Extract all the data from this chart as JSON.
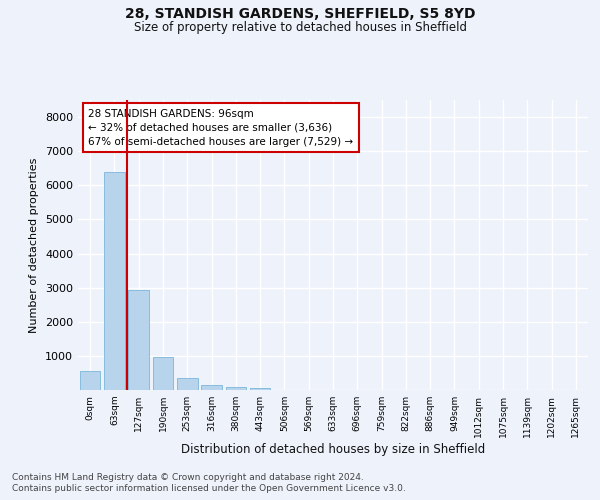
{
  "title_line1": "28, STANDISH GARDENS, SHEFFIELD, S5 8YD",
  "title_line2": "Size of property relative to detached houses in Sheffield",
  "xlabel": "Distribution of detached houses by size in Sheffield",
  "ylabel": "Number of detached properties",
  "categories": [
    "0sqm",
    "63sqm",
    "127sqm",
    "190sqm",
    "253sqm",
    "316sqm",
    "380sqm",
    "443sqm",
    "506sqm",
    "569sqm",
    "633sqm",
    "696sqm",
    "759sqm",
    "822sqm",
    "886sqm",
    "949sqm",
    "1012sqm",
    "1075sqm",
    "1139sqm",
    "1202sqm",
    "1265sqm"
  ],
  "bar_values": [
    560,
    6400,
    2920,
    970,
    360,
    160,
    90,
    60,
    0,
    0,
    0,
    0,
    0,
    0,
    0,
    0,
    0,
    0,
    0,
    0,
    0
  ],
  "bar_color": "#b8d4ec",
  "bar_edge_color": "#6aaed6",
  "vline_x": 1.5,
  "vline_color": "#cc0000",
  "annotation_text": "28 STANDISH GARDENS: 96sqm\n← 32% of detached houses are smaller (3,636)\n67% of semi-detached houses are larger (7,529) →",
  "annotation_box_facecolor": "#ffffff",
  "annotation_box_edgecolor": "#cc0000",
  "ylim": [
    0,
    8500
  ],
  "yticks": [
    0,
    1000,
    2000,
    3000,
    4000,
    5000,
    6000,
    7000,
    8000
  ],
  "footer_line1": "Contains HM Land Registry data © Crown copyright and database right 2024.",
  "footer_line2": "Contains public sector information licensed under the Open Government Licence v3.0.",
  "bg_color": "#eef2fb",
  "grid_color": "#ffffff"
}
